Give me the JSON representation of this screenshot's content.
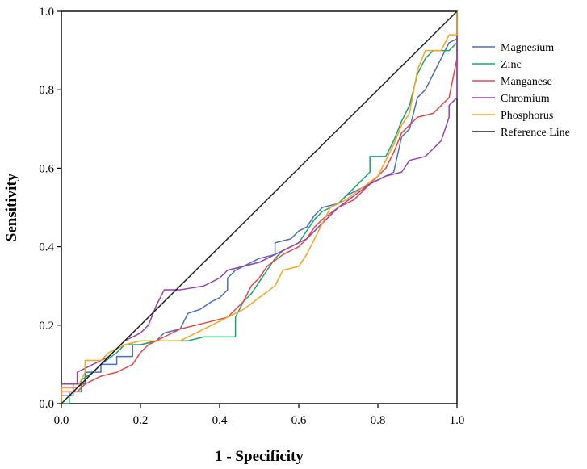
{
  "chart_data": {
    "type": "line",
    "xlabel": "1 - Specificity",
    "ylabel": "Sensitivity",
    "xlim": [
      0,
      1
    ],
    "ylim": [
      0,
      1
    ],
    "x_ticks": [
      "0.0",
      "0.2",
      "0.4",
      "0.6",
      "0.8",
      "1.0"
    ],
    "y_ticks": [
      "0.0",
      "0.2",
      "0.4",
      "0.6",
      "0.8",
      "1.0"
    ],
    "legend_position": "right",
    "series": [
      {
        "name": "Magnesium",
        "color": "#4a6fc4",
        "points": [
          [
            0,
            0
          ],
          [
            0,
            0.02
          ],
          [
            0.03,
            0.02
          ],
          [
            0.03,
            0.05
          ],
          [
            0.06,
            0.05
          ],
          [
            0.06,
            0.08
          ],
          [
            0.1,
            0.08
          ],
          [
            0.1,
            0.1
          ],
          [
            0.14,
            0.1
          ],
          [
            0.14,
            0.12
          ],
          [
            0.18,
            0.12
          ],
          [
            0.18,
            0.15
          ],
          [
            0.2,
            0.15
          ],
          [
            0.24,
            0.16
          ],
          [
            0.26,
            0.18
          ],
          [
            0.3,
            0.19
          ],
          [
            0.32,
            0.23
          ],
          [
            0.35,
            0.24
          ],
          [
            0.38,
            0.26
          ],
          [
            0.4,
            0.27
          ],
          [
            0.42,
            0.29
          ],
          [
            0.42,
            0.32
          ],
          [
            0.44,
            0.34
          ],
          [
            0.46,
            0.35
          ],
          [
            0.48,
            0.36
          ],
          [
            0.5,
            0.37
          ],
          [
            0.54,
            0.38
          ],
          [
            0.54,
            0.41
          ],
          [
            0.58,
            0.42
          ],
          [
            0.6,
            0.44
          ],
          [
            0.62,
            0.45
          ],
          [
            0.64,
            0.48
          ],
          [
            0.66,
            0.5
          ],
          [
            0.7,
            0.51
          ],
          [
            0.72,
            0.53
          ],
          [
            0.76,
            0.55
          ],
          [
            0.8,
            0.57
          ],
          [
            0.84,
            0.59
          ],
          [
            0.86,
            0.68
          ],
          [
            0.88,
            0.7
          ],
          [
            0.9,
            0.78
          ],
          [
            0.92,
            0.8
          ],
          [
            0.94,
            0.84
          ],
          [
            0.96,
            0.88
          ],
          [
            0.98,
            0.92
          ],
          [
            1,
            0.93
          ],
          [
            1,
            1
          ]
        ]
      },
      {
        "name": "Zinc",
        "color": "#1aa66c",
        "points": [
          [
            0,
            0
          ],
          [
            0.02,
            0
          ],
          [
            0.02,
            0.03
          ],
          [
            0.05,
            0.03
          ],
          [
            0.05,
            0.06
          ],
          [
            0.08,
            0.08
          ],
          [
            0.1,
            0.1
          ],
          [
            0.14,
            0.13
          ],
          [
            0.16,
            0.15
          ],
          [
            0.2,
            0.15
          ],
          [
            0.24,
            0.16
          ],
          [
            0.3,
            0.16
          ],
          [
            0.32,
            0.16
          ],
          [
            0.36,
            0.17
          ],
          [
            0.4,
            0.17
          ],
          [
            0.44,
            0.17
          ],
          [
            0.44,
            0.22
          ],
          [
            0.46,
            0.26
          ],
          [
            0.48,
            0.28
          ],
          [
            0.5,
            0.31
          ],
          [
            0.52,
            0.34
          ],
          [
            0.54,
            0.37
          ],
          [
            0.56,
            0.39
          ],
          [
            0.6,
            0.41
          ],
          [
            0.62,
            0.44
          ],
          [
            0.64,
            0.47
          ],
          [
            0.66,
            0.49
          ],
          [
            0.7,
            0.51
          ],
          [
            0.72,
            0.53
          ],
          [
            0.74,
            0.55
          ],
          [
            0.78,
            0.59
          ],
          [
            0.78,
            0.63
          ],
          [
            0.82,
            0.63
          ],
          [
            0.84,
            0.67
          ],
          [
            0.86,
            0.72
          ],
          [
            0.88,
            0.76
          ],
          [
            0.9,
            0.84
          ],
          [
            0.92,
            0.88
          ],
          [
            0.94,
            0.9
          ],
          [
            0.98,
            0.9
          ],
          [
            1,
            0.92
          ],
          [
            1,
            1
          ]
        ]
      },
      {
        "name": "Manganese",
        "color": "#e8474a",
        "points": [
          [
            0,
            0
          ],
          [
            0,
            0.03
          ],
          [
            0.04,
            0.03
          ],
          [
            0.06,
            0.05
          ],
          [
            0.08,
            0.06
          ],
          [
            0.1,
            0.07
          ],
          [
            0.14,
            0.08
          ],
          [
            0.18,
            0.1
          ],
          [
            0.2,
            0.13
          ],
          [
            0.22,
            0.15
          ],
          [
            0.26,
            0.17
          ],
          [
            0.3,
            0.19
          ],
          [
            0.34,
            0.2
          ],
          [
            0.38,
            0.21
          ],
          [
            0.42,
            0.22
          ],
          [
            0.44,
            0.24
          ],
          [
            0.46,
            0.26
          ],
          [
            0.48,
            0.3
          ],
          [
            0.5,
            0.32
          ],
          [
            0.52,
            0.35
          ],
          [
            0.56,
            0.38
          ],
          [
            0.6,
            0.4
          ],
          [
            0.62,
            0.42
          ],
          [
            0.64,
            0.45
          ],
          [
            0.66,
            0.47
          ],
          [
            0.7,
            0.5
          ],
          [
            0.74,
            0.52
          ],
          [
            0.78,
            0.56
          ],
          [
            0.82,
            0.6
          ],
          [
            0.84,
            0.64
          ],
          [
            0.86,
            0.69
          ],
          [
            0.88,
            0.71
          ],
          [
            0.9,
            0.73
          ],
          [
            0.94,
            0.74
          ],
          [
            0.96,
            0.76
          ],
          [
            0.98,
            0.78
          ],
          [
            1,
            0.88
          ],
          [
            1,
            1
          ]
        ]
      },
      {
        "name": "Chromium",
        "color": "#9b3fae",
        "points": [
          [
            0,
            0
          ],
          [
            0,
            0.05
          ],
          [
            0.04,
            0.05
          ],
          [
            0.04,
            0.08
          ],
          [
            0.08,
            0.1
          ],
          [
            0.12,
            0.12
          ],
          [
            0.16,
            0.16
          ],
          [
            0.2,
            0.18
          ],
          [
            0.22,
            0.2
          ],
          [
            0.24,
            0.25
          ],
          [
            0.26,
            0.29
          ],
          [
            0.3,
            0.29
          ],
          [
            0.36,
            0.3
          ],
          [
            0.4,
            0.32
          ],
          [
            0.42,
            0.34
          ],
          [
            0.46,
            0.35
          ],
          [
            0.5,
            0.36
          ],
          [
            0.54,
            0.38
          ],
          [
            0.58,
            0.4
          ],
          [
            0.62,
            0.42
          ],
          [
            0.66,
            0.46
          ],
          [
            0.7,
            0.5
          ],
          [
            0.74,
            0.53
          ],
          [
            0.78,
            0.56
          ],
          [
            0.82,
            0.58
          ],
          [
            0.86,
            0.59
          ],
          [
            0.88,
            0.62
          ],
          [
            0.92,
            0.63
          ],
          [
            0.94,
            0.65
          ],
          [
            0.96,
            0.67
          ],
          [
            0.98,
            0.73
          ],
          [
            0.98,
            0.76
          ],
          [
            1,
            0.78
          ],
          [
            1,
            1
          ]
        ]
      },
      {
        "name": "Phosphorus",
        "color": "#f5a623",
        "points": [
          [
            0,
            0
          ],
          [
            0,
            0.04
          ],
          [
            0.04,
            0.04
          ],
          [
            0.06,
            0.08
          ],
          [
            0.06,
            0.11
          ],
          [
            0.1,
            0.11
          ],
          [
            0.12,
            0.13
          ],
          [
            0.16,
            0.15
          ],
          [
            0.2,
            0.16
          ],
          [
            0.26,
            0.16
          ],
          [
            0.3,
            0.16
          ],
          [
            0.34,
            0.18
          ],
          [
            0.38,
            0.2
          ],
          [
            0.42,
            0.22
          ],
          [
            0.46,
            0.24
          ],
          [
            0.5,
            0.27
          ],
          [
            0.54,
            0.3
          ],
          [
            0.56,
            0.34
          ],
          [
            0.6,
            0.35
          ],
          [
            0.62,
            0.38
          ],
          [
            0.64,
            0.42
          ],
          [
            0.66,
            0.46
          ],
          [
            0.68,
            0.5
          ],
          [
            0.72,
            0.52
          ],
          [
            0.76,
            0.55
          ],
          [
            0.8,
            0.58
          ],
          [
            0.82,
            0.62
          ],
          [
            0.84,
            0.66
          ],
          [
            0.86,
            0.71
          ],
          [
            0.88,
            0.74
          ],
          [
            0.9,
            0.85
          ],
          [
            0.92,
            0.9
          ],
          [
            0.96,
            0.9
          ],
          [
            0.98,
            0.94
          ],
          [
            1,
            0.94
          ],
          [
            1,
            1
          ]
        ]
      },
      {
        "name": "Reference Line",
        "color": "#222222",
        "points": [
          [
            0,
            0
          ],
          [
            1,
            1
          ]
        ]
      }
    ]
  }
}
